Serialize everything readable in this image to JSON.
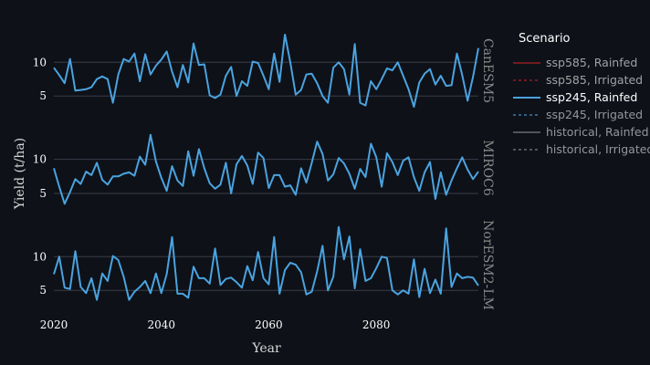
{
  "chart_data": {
    "type": "line",
    "xlabel": "Year",
    "ylabel": "Yield (t/ha)",
    "xlim": [
      2020,
      2099
    ],
    "x_ticks": [
      2020,
      2040,
      2060,
      2080
    ],
    "ylim": [
      3,
      14.5
    ],
    "y_ticks": [
      5,
      10
    ],
    "grid": true,
    "legend": {
      "title": "Scenario",
      "position": "top-right",
      "entries": [
        {
          "label": "ssp585, Rainfed",
          "color": "#b22222",
          "dash": "solid",
          "opacity": 0.6
        },
        {
          "label": "ssp585, Irrigated",
          "color": "#b22222",
          "dash": "dashed",
          "opacity": 0.6
        },
        {
          "label": "ssp245, Rainfed",
          "color": "#4aa3df",
          "dash": "solid",
          "opacity": 1
        },
        {
          "label": "ssp245, Irrigated",
          "color": "#4aa3df",
          "dash": "dashed",
          "opacity": 0.55
        },
        {
          "label": "historical, Rainfed",
          "color": "#8c8c8c",
          "dash": "solid",
          "opacity": 0.55
        },
        {
          "label": "historical, Irrigated",
          "color": "#8c8c8c",
          "dash": "dashed",
          "opacity": 0.55
        }
      ]
    },
    "facets": [
      {
        "label": "CanESM5",
        "series": [
          {
            "scenario": "ssp245, Rainfed",
            "x_start": 2020,
            "values": [
              9.2,
              8.1,
              6.9,
              10.5,
              5.8,
              5.9,
              6.0,
              6.3,
              7.5,
              7.9,
              7.5,
              4.0,
              8.2,
              10.5,
              10.1,
              11.3,
              7.2,
              11.2,
              8.2,
              9.5,
              10.4,
              11.6,
              8.6,
              6.3,
              9.6,
              7.0,
              12.8,
              9.6,
              9.7,
              5.1,
              4.7,
              5.2,
              8.0,
              9.3,
              5.0,
              7.2,
              6.5,
              10.1,
              9.9,
              8.0,
              6.0,
              11.3,
              7.1,
              14.1,
              10.0,
              5.2,
              5.9,
              8.2,
              8.3,
              6.9,
              5.0,
              4.0,
              9.2,
              10.0,
              9.0,
              5.2,
              12.7,
              4.0,
              3.6,
              7.2,
              6.0,
              7.5,
              9.1,
              8.8,
              10.0,
              8.0,
              6.0,
              3.4,
              7.0,
              8.3,
              9.0,
              6.7,
              8.0,
              6.5,
              6.6,
              11.3,
              8.1,
              4.3,
              7.8,
              12.1
            ]
          }
        ]
      },
      {
        "label": "MIROC6",
        "series": [
          {
            "scenario": "ssp245, Rainfed",
            "x_start": 2020,
            "values": [
              8.7,
              6.0,
              3.5,
              5.2,
              7.1,
              6.4,
              8.2,
              7.7,
              9.5,
              7.0,
              6.3,
              7.5,
              7.5,
              7.9,
              8.1,
              7.6,
              10.4,
              9.2,
              13.6,
              9.7,
              7.3,
              5.4,
              9.0,
              6.9,
              6.1,
              11.2,
              7.6,
              11.5,
              8.7,
              6.5,
              5.7,
              6.3,
              9.5,
              5.0,
              9.3,
              10.5,
              9.1,
              6.4,
              11.0,
              10.2,
              5.8,
              7.7,
              7.7,
              6.0,
              6.2,
              4.8,
              8.7,
              6.6,
              9.5,
              12.6,
              10.8,
              6.9,
              7.8,
              10.2,
              9.4,
              7.9,
              5.7,
              8.6,
              7.4,
              12.3,
              10.3,
              6.0,
              10.9,
              9.6,
              7.7,
              9.8,
              10.3,
              7.4,
              5.4,
              8.1,
              9.6,
              4.2,
              8.1,
              4.8,
              6.9,
              8.7,
              10.3,
              8.5,
              7.1,
              8.2
            ]
          }
        ]
      },
      {
        "label": "NorESM2-LM",
        "series": [
          {
            "scenario": "ssp245, Rainfed",
            "x_start": 2020,
            "values": [
              7.4,
              10.0,
              5.4,
              5.2,
              10.8,
              5.5,
              4.6,
              6.8,
              3.6,
              7.5,
              6.4,
              10.1,
              9.5,
              7.0,
              3.6,
              4.8,
              5.5,
              6.4,
              4.6,
              7.5,
              4.6,
              7.4,
              12.9,
              4.5,
              4.5,
              3.9,
              8.5,
              6.8,
              6.8,
              6.0,
              11.2,
              5.8,
              6.7,
              6.9,
              6.2,
              5.4,
              8.6,
              6.5,
              10.7,
              6.8,
              5.9,
              12.9,
              4.5,
              8.0,
              9.1,
              8.8,
              7.7,
              4.4,
              4.8,
              7.8,
              11.6,
              5.0,
              7.0,
              14.4,
              9.6,
              13.0,
              5.3,
              11.1,
              6.4,
              6.8,
              8.3,
              10.0,
              9.8,
              5.0,
              4.4,
              5.0,
              4.5,
              9.6,
              4.0,
              8.2,
              4.6,
              6.6,
              4.5,
              14.2,
              5.5,
              7.5,
              6.8,
              7.0,
              6.9,
              5.7
            ]
          }
        ]
      }
    ]
  }
}
